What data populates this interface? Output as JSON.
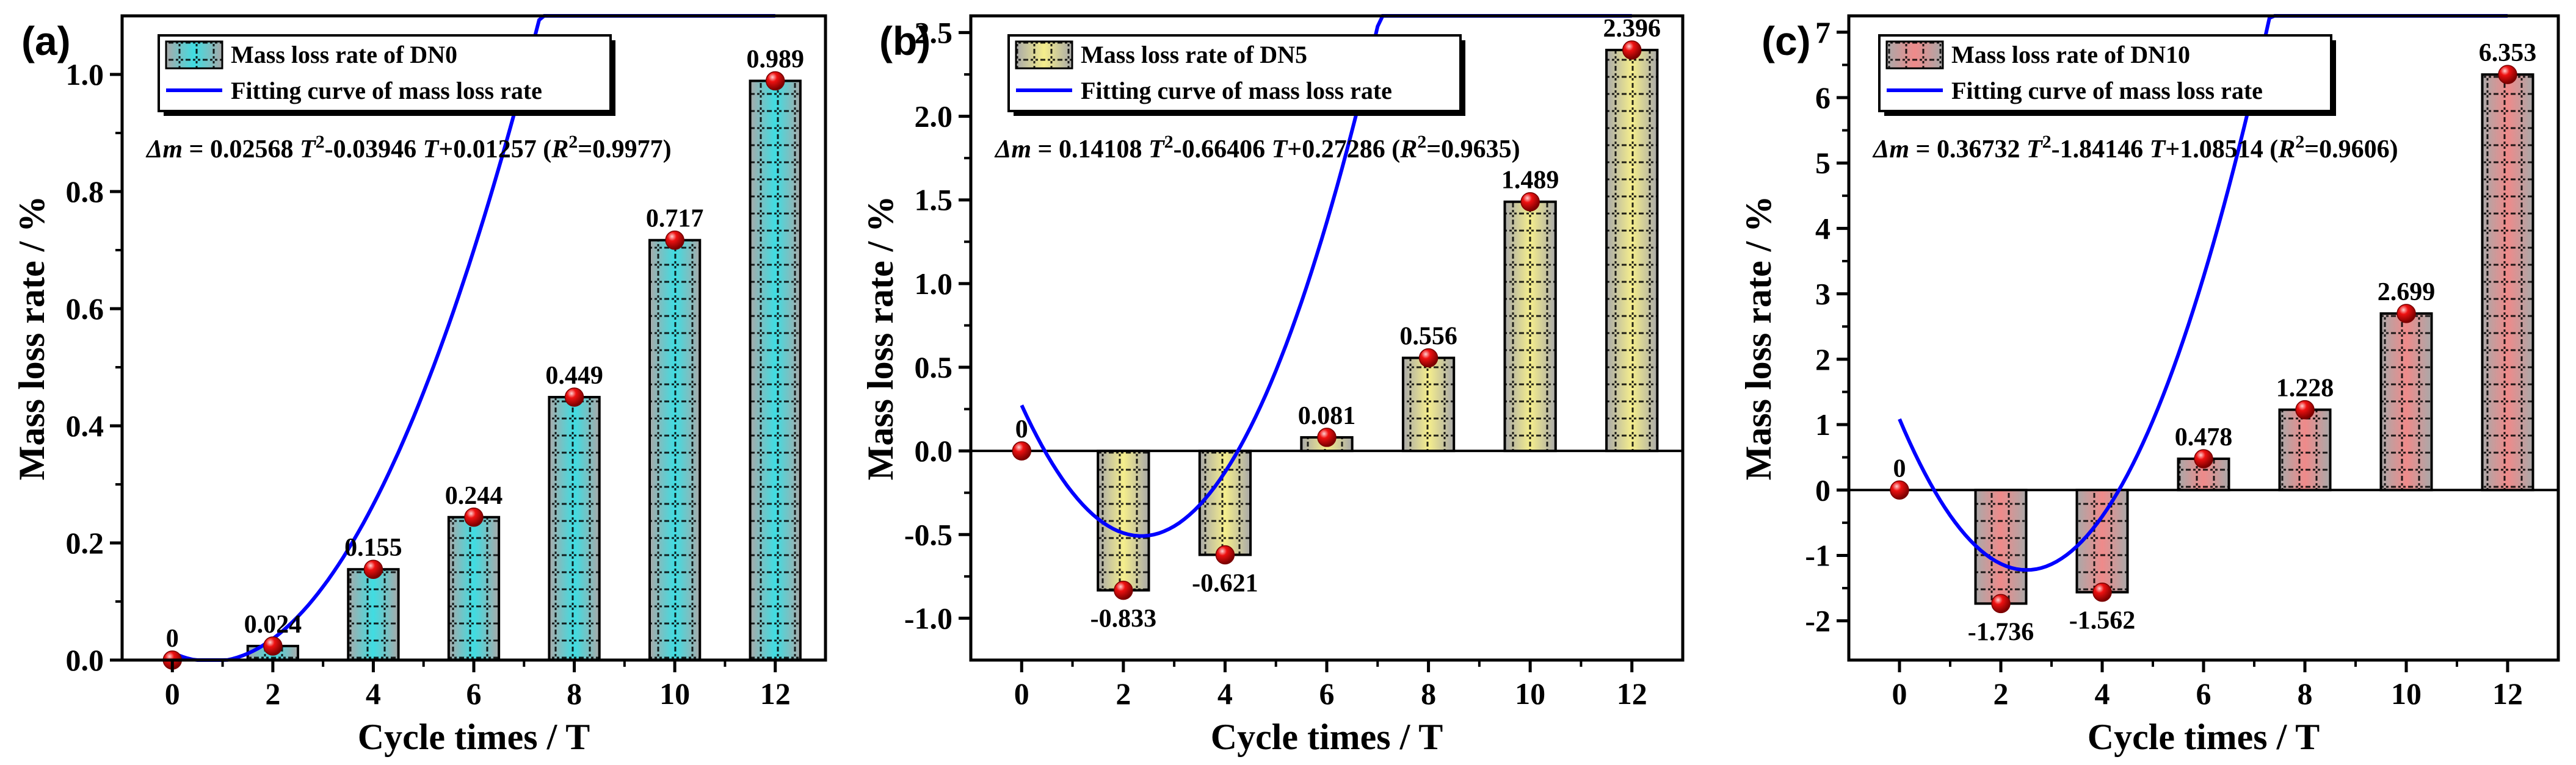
{
  "figure": {
    "panels": [
      "(a)",
      "(b)",
      "(c)"
    ]
  },
  "chart_data": [
    {
      "type": "bar",
      "panel_label": "(a)",
      "categories": [
        "0",
        "2",
        "4",
        "6",
        "8",
        "10",
        "12"
      ],
      "x": [
        0,
        2,
        4,
        6,
        8,
        10,
        12
      ],
      "values": [
        0,
        0.024,
        0.155,
        0.244,
        0.449,
        0.717,
        0.989
      ],
      "value_labels": [
        "0",
        "0.024",
        "0.155",
        "0.244",
        "0.449",
        "0.717",
        "0.989"
      ],
      "fit": {
        "a": 0.02568,
        "b": -0.03946,
        "c": 0.01257
      },
      "fit_equation": {
        "prefix": "Δm",
        "text1": " = 0.02568 ",
        "t1": "T",
        "sup": "2",
        "text2": "-0.03946 ",
        "t2": "T",
        "text3": "+0.01257 (",
        "r": "R",
        "r2": "2",
        "text4": "=0.9977)"
      },
      "title": "",
      "xlabel": "Cycle times / T",
      "ylabel": "Mass loss rate / %",
      "xlim": [
        -1,
        13
      ],
      "ylim": [
        0,
        1.1
      ],
      "yticks": [
        0,
        0.2,
        0.4,
        0.6,
        0.8,
        1.0
      ],
      "ytick_labels": [
        "0.0",
        "0.2",
        "0.4",
        "0.6",
        "0.8",
        "1.0"
      ],
      "xticks": [
        0,
        2,
        4,
        6,
        8,
        10,
        12
      ],
      "xtick_labels": [
        "0",
        "2",
        "4",
        "6",
        "8",
        "10",
        "12"
      ],
      "legend": [
        "Mass loss rate of DN0",
        "Fitting curve of mass loss rate"
      ],
      "legend_position": "top-left",
      "bar_color": "#3fdde2",
      "line_color": "#0000ff",
      "marker_color": "#ee1111"
    },
    {
      "type": "bar",
      "panel_label": "(b)",
      "categories": [
        "0",
        "2",
        "4",
        "6",
        "8",
        "10",
        "12"
      ],
      "x": [
        0,
        2,
        4,
        6,
        8,
        10,
        12
      ],
      "values": [
        0,
        -0.833,
        -0.621,
        0.081,
        0.556,
        1.489,
        2.396
      ],
      "value_labels": [
        "0",
        "-0.833",
        "-0.621",
        "0.081",
        "0.556",
        "1.489",
        "2.396"
      ],
      "fit": {
        "a": 0.14108,
        "b": -0.66406,
        "c": 0.27286
      },
      "fit_equation": {
        "prefix": "Δm",
        "text1": " = 0.14108 ",
        "t1": "T",
        "sup": "2",
        "text2": "-0.66406 ",
        "t2": "T",
        "text3": "+0.27286 (",
        "r": "R",
        "r2": "2",
        "text4": "=0.9635)"
      },
      "title": "",
      "xlabel": "Cycle times / T",
      "ylabel": "Mass loss rate / %",
      "xlim": [
        -1,
        13
      ],
      "ylim": [
        -1.25,
        2.6
      ],
      "yticks": [
        -1.0,
        -0.5,
        0.0,
        0.5,
        1.0,
        1.5,
        2.0,
        2.5
      ],
      "ytick_labels": [
        "-1.0",
        "-0.5",
        "0.0",
        "0.5",
        "1.0",
        "1.5",
        "2.0",
        "2.5"
      ],
      "xticks": [
        0,
        2,
        4,
        6,
        8,
        10,
        12
      ],
      "xtick_labels": [
        "0",
        "2",
        "4",
        "6",
        "8",
        "10",
        "12"
      ],
      "legend": [
        "Mass loss rate of DN5",
        "Fitting curve of mass loss rate"
      ],
      "legend_position": "top-left",
      "bar_color": "#f5ee8c",
      "line_color": "#0000ff",
      "marker_color": "#ee1111"
    },
    {
      "type": "bar",
      "panel_label": "(c)",
      "categories": [
        "0",
        "2",
        "4",
        "6",
        "8",
        "10",
        "12"
      ],
      "x": [
        0,
        2,
        4,
        6,
        8,
        10,
        12
      ],
      "values": [
        0,
        -1.736,
        -1.562,
        0.478,
        1.228,
        2.699,
        6.353
      ],
      "value_labels": [
        "0",
        "-1.736",
        "-1.562",
        "0.478",
        "1.228",
        "2.699",
        "6.353"
      ],
      "fit": {
        "a": 0.36732,
        "b": -1.84146,
        "c": 1.08514
      },
      "fit_equation": {
        "prefix": "Δm",
        "text1": " = 0.36732 ",
        "t1": "T",
        "sup": "2",
        "text2": "-1.84146 ",
        "t2": "T",
        "text3": "+1.08514 (",
        "r": "R",
        "r2": "2",
        "text4": "=0.9606)"
      },
      "title": "",
      "xlabel": "Cycle times / T",
      "ylabel": "Mass loss rate / %",
      "xlim": [
        -1,
        13
      ],
      "ylim": [
        -2.6,
        7.25
      ],
      "yticks": [
        -2,
        -1,
        0,
        1,
        2,
        3,
        4,
        5,
        6,
        7
      ],
      "ytick_labels": [
        "-2",
        "-1",
        "0",
        "1",
        "2",
        "3",
        "4",
        "5",
        "6",
        "7"
      ],
      "xticks": [
        0,
        2,
        4,
        6,
        8,
        10,
        12
      ],
      "xtick_labels": [
        "0",
        "2",
        "4",
        "6",
        "8",
        "10",
        "12"
      ],
      "legend": [
        "Mass loss rate of DN10",
        "Fitting curve of mass loss rate"
      ],
      "legend_position": "top-left",
      "bar_color": "#ef8a8a",
      "line_color": "#0000ff",
      "marker_color": "#ee1111"
    }
  ]
}
